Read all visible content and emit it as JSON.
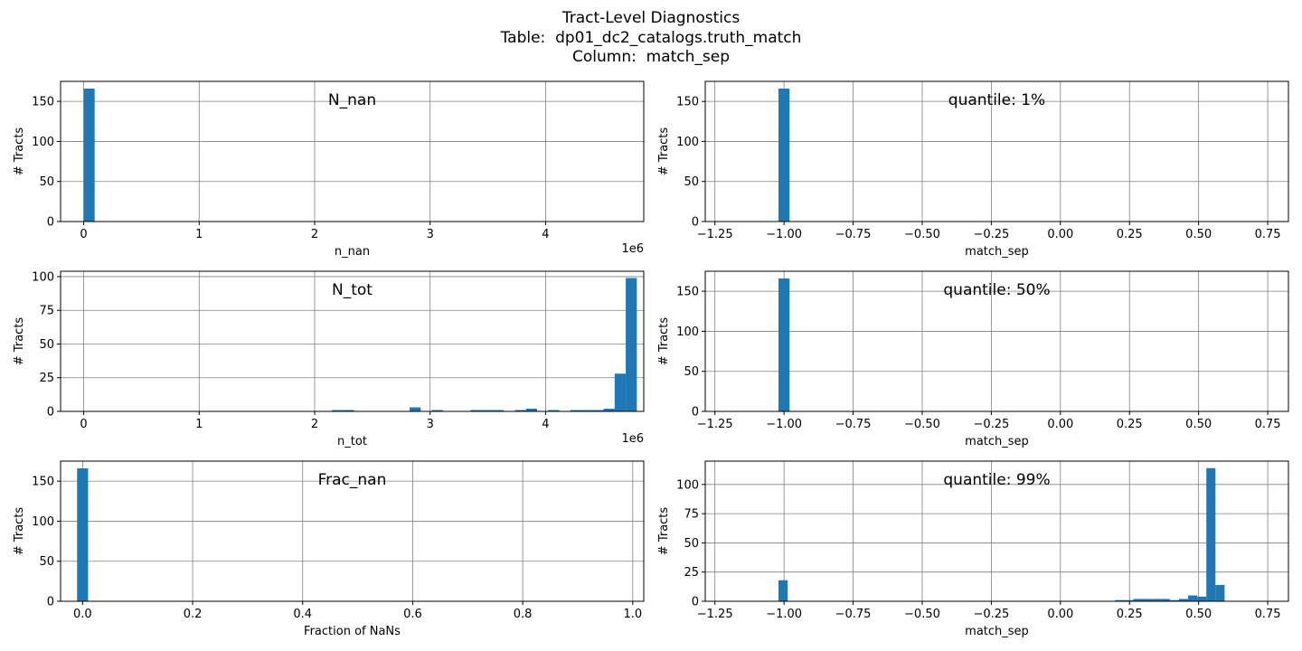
{
  "figure": {
    "title_lines": [
      "Tract-Level Diagnostics",
      "Table:  dp01_dc2_catalogs.truth_match",
      "Column:  match_sep"
    ],
    "colors": {
      "bar": "#1f77b4",
      "grid": "#808080",
      "axis": "#000000"
    }
  },
  "chart_data": [
    {
      "type": "bar",
      "panel": "left-top",
      "annotation": "N_nan",
      "xlabel": "n_nan",
      "ylabel": "# Tracts",
      "xlim": [
        -200000,
        4850000
      ],
      "ylim": [
        0,
        175
      ],
      "xticks": [
        0,
        1000000,
        2000000,
        3000000,
        4000000
      ],
      "xtick_labels": [
        "0",
        "1",
        "2",
        "3",
        "4"
      ],
      "offset_text": "1e6",
      "yticks": [
        0,
        50,
        100,
        150
      ],
      "ytick_labels": [
        "0",
        "50",
        "100",
        "150"
      ],
      "bin_width": 95000,
      "bars": [
        {
          "x": 0,
          "value": 166
        }
      ]
    },
    {
      "type": "bar",
      "panel": "right-top",
      "annotation": "quantile: 1%",
      "xlabel": "match_sep",
      "ylabel": "# Tracts",
      "xlim": [
        -1.285,
        0.825
      ],
      "ylim": [
        0,
        175
      ],
      "xticks": [
        -1.25,
        -1.0,
        -0.75,
        -0.5,
        -0.25,
        0.0,
        0.25,
        0.5,
        0.75
      ],
      "xtick_labels": [
        "−1.25",
        "−1.00",
        "−0.75",
        "−0.50",
        "−0.25",
        "0.00",
        "0.25",
        "0.50",
        "0.75"
      ],
      "yticks": [
        0,
        50,
        100,
        150
      ],
      "ytick_labels": [
        "0",
        "50",
        "100",
        "150"
      ],
      "bin_width": 0.04,
      "bars": [
        {
          "x": -1.02,
          "value": 166
        }
      ]
    },
    {
      "type": "bar",
      "panel": "left-middle",
      "annotation": "N_tot",
      "xlabel": "n_tot",
      "ylabel": "# Tracts",
      "xlim": [
        -200000,
        4850000
      ],
      "ylim": [
        0,
        104
      ],
      "xticks": [
        0,
        1000000,
        2000000,
        3000000,
        4000000
      ],
      "xtick_labels": [
        "0",
        "1",
        "2",
        "3",
        "4"
      ],
      "offset_text": "1e6",
      "yticks": [
        0,
        25,
        50,
        75,
        100
      ],
      "ytick_labels": [
        "0",
        "25",
        "50",
        "75",
        "100"
      ],
      "bin_width": 96000,
      "bars": [
        {
          "x": 2150000,
          "value": 1
        },
        {
          "x": 2246000,
          "value": 1
        },
        {
          "x": 2822000,
          "value": 3
        },
        {
          "x": 3014000,
          "value": 1
        },
        {
          "x": 3350000,
          "value": 1
        },
        {
          "x": 3446000,
          "value": 1
        },
        {
          "x": 3542000,
          "value": 1
        },
        {
          "x": 3734000,
          "value": 1
        },
        {
          "x": 3830000,
          "value": 2
        },
        {
          "x": 4022000,
          "value": 1
        },
        {
          "x": 4214000,
          "value": 1
        },
        {
          "x": 4310000,
          "value": 1
        },
        {
          "x": 4406000,
          "value": 1
        },
        {
          "x": 4502000,
          "value": 2
        },
        {
          "x": 4598000,
          "value": 28
        },
        {
          "x": 4694000,
          "value": 99
        }
      ]
    },
    {
      "type": "bar",
      "panel": "right-middle",
      "annotation": "quantile: 50%",
      "xlabel": "match_sep",
      "ylabel": "# Tracts",
      "xlim": [
        -1.285,
        0.825
      ],
      "ylim": [
        0,
        175
      ],
      "xticks": [
        -1.25,
        -1.0,
        -0.75,
        -0.5,
        -0.25,
        0.0,
        0.25,
        0.5,
        0.75
      ],
      "xtick_labels": [
        "−1.25",
        "−1.00",
        "−0.75",
        "−0.50",
        "−0.25",
        "0.00",
        "0.25",
        "0.50",
        "0.75"
      ],
      "yticks": [
        0,
        50,
        100,
        150
      ],
      "ytick_labels": [
        "0",
        "50",
        "100",
        "150"
      ],
      "bin_width": 0.04,
      "bars": [
        {
          "x": -1.02,
          "value": 166
        }
      ]
    },
    {
      "type": "bar",
      "panel": "left-bottom",
      "annotation": "Frac_nan",
      "xlabel": "Fraction of NaNs",
      "ylabel": "# Tracts",
      "xlim": [
        -0.04,
        1.02
      ],
      "ylim": [
        0,
        175
      ],
      "xticks": [
        0.0,
        0.2,
        0.4,
        0.6,
        0.8,
        1.0
      ],
      "xtick_labels": [
        "0.0",
        "0.2",
        "0.4",
        "0.6",
        "0.8",
        "1.0"
      ],
      "yticks": [
        0,
        50,
        100,
        150
      ],
      "ytick_labels": [
        "0",
        "50",
        "100",
        "150"
      ],
      "bin_width": 0.02,
      "bars": [
        {
          "x": -0.01,
          "value": 166
        }
      ]
    },
    {
      "type": "bar",
      "panel": "right-bottom",
      "annotation": "quantile: 99%",
      "xlabel": "match_sep",
      "ylabel": "# Tracts",
      "xlim": [
        -1.285,
        0.825
      ],
      "ylim": [
        0,
        120
      ],
      "xticks": [
        -1.25,
        -1.0,
        -0.75,
        -0.5,
        -0.25,
        0.0,
        0.25,
        0.5,
        0.75
      ],
      "xtick_labels": [
        "−1.25",
        "−1.00",
        "−0.75",
        "−0.50",
        "−0.25",
        "0.00",
        "0.25",
        "0.50",
        "0.75"
      ],
      "yticks": [
        0,
        25,
        50,
        75,
        100
      ],
      "ytick_labels": [
        "0",
        "25",
        "50",
        "75",
        "100"
      ],
      "bin_width": 0.033,
      "bars": [
        {
          "x": -1.02,
          "value": 18
        },
        {
          "x": 0.198,
          "value": 1
        },
        {
          "x": 0.231,
          "value": 1
        },
        {
          "x": 0.264,
          "value": 2
        },
        {
          "x": 0.297,
          "value": 2
        },
        {
          "x": 0.33,
          "value": 2
        },
        {
          "x": 0.363,
          "value": 2
        },
        {
          "x": 0.396,
          "value": 1
        },
        {
          "x": 0.429,
          "value": 2
        },
        {
          "x": 0.462,
          "value": 5
        },
        {
          "x": 0.495,
          "value": 4
        },
        {
          "x": 0.528,
          "value": 114
        },
        {
          "x": 0.561,
          "value": 14
        }
      ]
    }
  ]
}
